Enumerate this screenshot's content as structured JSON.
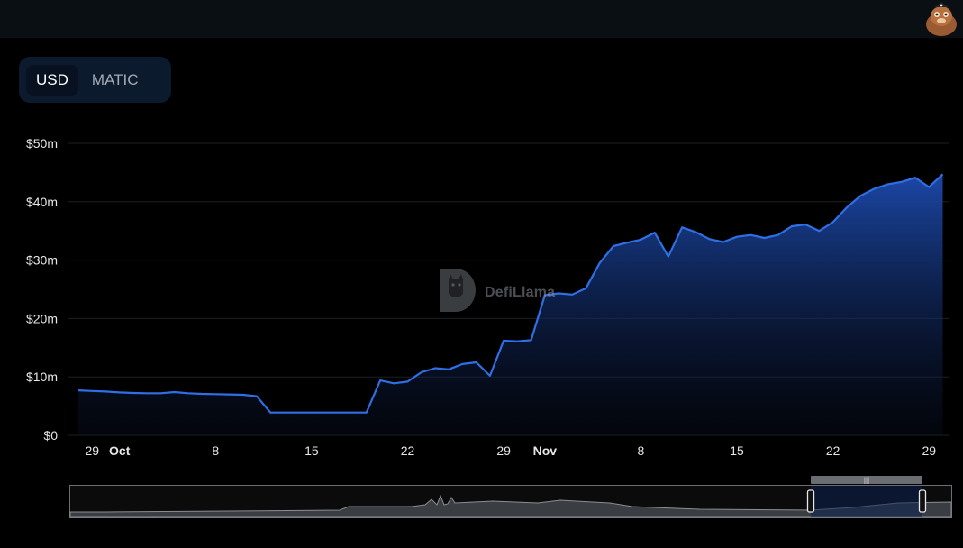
{
  "header": {
    "avatar_icon": "llama-mascot-icon"
  },
  "currency_toggle": {
    "options": [
      "USD",
      "MATIC"
    ],
    "selected": "USD"
  },
  "watermark": {
    "text": "DefiLlama",
    "icon": "defillama-logo-icon"
  },
  "colors": {
    "line": "#2f6fe4",
    "area_top": "#1d4bb0",
    "background": "#000000",
    "grid": "#1c1f24",
    "toggle_bg": "#0c1a2e"
  },
  "chart_data": {
    "type": "area",
    "xlabel": "",
    "ylabel": "",
    "ylim": [
      0,
      50
    ],
    "y_unit": "$m",
    "y_ticks": [
      "$0",
      "$10m",
      "$20m",
      "$30m",
      "$40m",
      "$50m"
    ],
    "x_ticks": [
      {
        "label": "29",
        "x": "2023-09-29",
        "bold": false
      },
      {
        "label": "Oct",
        "x": "2023-10-01",
        "bold": true
      },
      {
        "label": "8",
        "x": "2023-10-08",
        "bold": false
      },
      {
        "label": "15",
        "x": "2023-10-15",
        "bold": false
      },
      {
        "label": "22",
        "x": "2023-10-22",
        "bold": false
      },
      {
        "label": "29",
        "x": "2023-10-29",
        "bold": false
      },
      {
        "label": "Nov",
        "x": "2023-11-01",
        "bold": true
      },
      {
        "label": "8",
        "x": "2023-11-08",
        "bold": false
      },
      {
        "label": "15",
        "x": "2023-11-15",
        "bold": false
      },
      {
        "label": "22",
        "x": "2023-11-22",
        "bold": false
      },
      {
        "label": "29",
        "x": "2023-11-29",
        "bold": false
      }
    ],
    "grid": true,
    "legend": "none",
    "series": [
      {
        "x": [
          "2023-09-28",
          "2023-09-29",
          "2023-09-30",
          "2023-10-01",
          "2023-10-02",
          "2023-10-03",
          "2023-10-04",
          "2023-10-05",
          "2023-10-06",
          "2023-10-07",
          "2023-10-08",
          "2023-10-09",
          "2023-10-10",
          "2023-10-11",
          "2023-10-12",
          "2023-10-13",
          "2023-10-14",
          "2023-10-15",
          "2023-10-16",
          "2023-10-17",
          "2023-10-18",
          "2023-10-19",
          "2023-10-20",
          "2023-10-21",
          "2023-10-22",
          "2023-10-23",
          "2023-10-24",
          "2023-10-25",
          "2023-10-26",
          "2023-10-27",
          "2023-10-28",
          "2023-10-29",
          "2023-10-30",
          "2023-10-31",
          "2023-11-01",
          "2023-11-02",
          "2023-11-03",
          "2023-11-04",
          "2023-11-05",
          "2023-11-06",
          "2023-11-07",
          "2023-11-08",
          "2023-11-09",
          "2023-11-10",
          "2023-11-11",
          "2023-11-12",
          "2023-11-13",
          "2023-11-14",
          "2023-11-15",
          "2023-11-16",
          "2023-11-17",
          "2023-11-18",
          "2023-11-19",
          "2023-11-20",
          "2023-11-21",
          "2023-11-22",
          "2023-11-23",
          "2023-11-24",
          "2023-11-25",
          "2023-11-26",
          "2023-11-27",
          "2023-11-28",
          "2023-11-29",
          "2023-11-30"
        ],
        "values": [
          7.7,
          7.6,
          7.5,
          7.35,
          7.25,
          7.2,
          7.2,
          7.4,
          7.2,
          7.1,
          7.05,
          7.0,
          6.95,
          6.7,
          3.9,
          3.9,
          3.9,
          3.9,
          3.9,
          3.9,
          3.9,
          3.9,
          9.4,
          8.9,
          9.2,
          10.8,
          11.5,
          11.3,
          12.2,
          12.5,
          10.2,
          16.2,
          16.1,
          16.3,
          24.0,
          24.3,
          24.1,
          25.2,
          29.5,
          32.4,
          33.0,
          33.5,
          34.7,
          30.6,
          35.6,
          34.8,
          33.6,
          33.1,
          34.0,
          34.3,
          33.8,
          34.3,
          35.8,
          36.1,
          35.0,
          36.5,
          39.0,
          41.0,
          42.2,
          43.0,
          43.4,
          44.1,
          42.5,
          44.7
        ]
      }
    ]
  }
}
